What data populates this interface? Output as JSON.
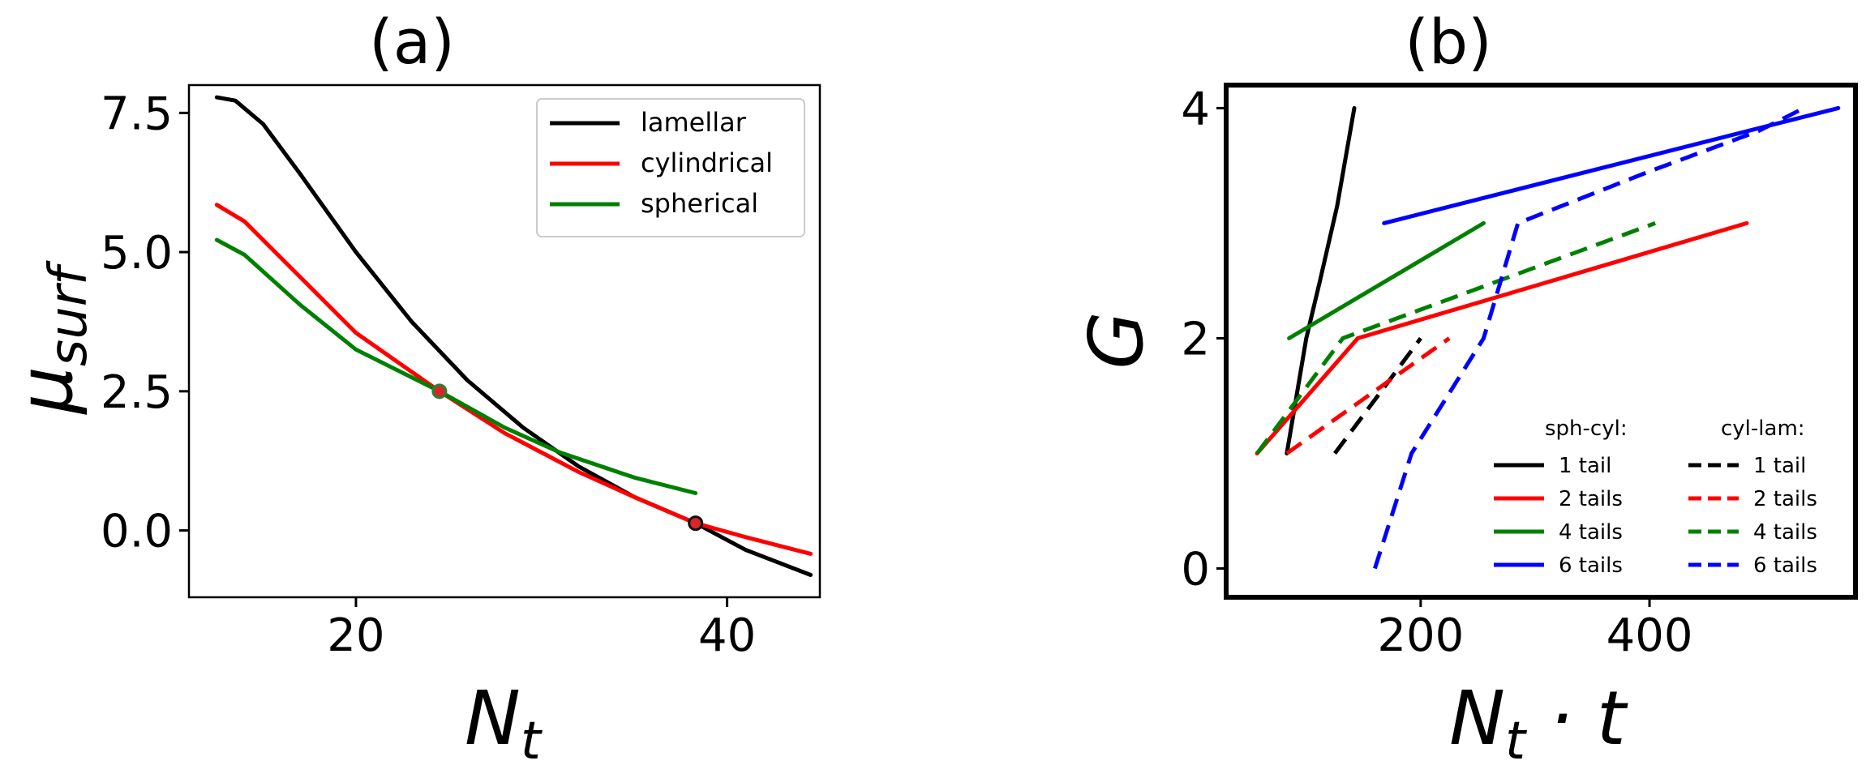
{
  "chart_data": [
    {
      "panel_label": "(a)",
      "type": "line",
      "xlabel_base": "N",
      "xlabel_sub": "t",
      "ylabel_base": "μ",
      "ylabel_sub": "surf",
      "xlim": [
        11.0,
        45.0
      ],
      "ylim": [
        -1.2,
        8.0
      ],
      "xticks": [
        20,
        40
      ],
      "yticks": [
        0.0,
        2.5,
        5.0,
        7.5
      ],
      "xtick_labels": [
        "20",
        "40"
      ],
      "ytick_labels": [
        "0.0",
        "2.5",
        "5.0",
        "7.5"
      ],
      "grid": false,
      "legend_position": "upper-right",
      "series": [
        {
          "name": "lamellar",
          "color": "#000000",
          "style": "solid",
          "x": [
            12.5,
            13.5,
            15,
            17,
            20,
            23,
            26,
            29,
            32,
            35,
            38.3,
            41,
            44.5
          ],
          "y": [
            7.78,
            7.72,
            7.3,
            6.4,
            5.0,
            3.75,
            2.7,
            1.85,
            1.15,
            0.6,
            0.13,
            -0.35,
            -0.8
          ]
        },
        {
          "name": "cylindrical",
          "color": "#ff0000",
          "style": "solid",
          "x": [
            12.5,
            14,
            17,
            20,
            24.5,
            28,
            32,
            35,
            38.3,
            41,
            44.5
          ],
          "y": [
            5.85,
            5.55,
            4.55,
            3.55,
            2.5,
            1.75,
            1.05,
            0.6,
            0.13,
            -0.12,
            -0.42
          ]
        },
        {
          "name": "spherical",
          "color": "#008000",
          "style": "solid",
          "x": [
            12.5,
            14,
            17,
            20,
            24.5,
            28,
            31,
            35,
            38.3
          ],
          "y": [
            5.22,
            4.95,
            4.05,
            3.25,
            2.5,
            1.85,
            1.4,
            0.95,
            0.67
          ]
        }
      ],
      "markers": [
        {
          "x": 24.5,
          "y": 2.5,
          "fill": "#d62728",
          "stroke": "#2e7d32"
        },
        {
          "x": 38.3,
          "y": 0.13,
          "fill": "#d62728",
          "stroke": "#111111"
        }
      ]
    },
    {
      "panel_label": "(b)",
      "type": "line",
      "xlabel_base": "N",
      "xlabel_sub": "t",
      "xlabel_rest": " · t",
      "ylabel": "G",
      "xlim": [
        30,
        580
      ],
      "ylim": [
        -0.25,
        4.2
      ],
      "xticks": [
        200,
        400
      ],
      "yticks": [
        0,
        2,
        4
      ],
      "xtick_labels": [
        "200",
        "400"
      ],
      "ytick_labels": [
        "0",
        "2",
        "4"
      ],
      "grid": false,
      "legend_position": "lower-right",
      "legend_titles": [
        "sph-cyl:",
        "cyl-lam:"
      ],
      "series": [
        {
          "name": "1 tail",
          "group": "sph-cyl",
          "color": "#000000",
          "style": "solid",
          "x": [
            83,
            100,
            112,
            127,
            142
          ],
          "y": [
            1,
            2,
            2.5,
            3.15,
            4
          ]
        },
        {
          "name": "2 tails",
          "group": "sph-cyl",
          "color": "#ff0000",
          "style": "solid",
          "x": [
            57,
            145,
            485
          ],
          "y": [
            1,
            2,
            3
          ]
        },
        {
          "name": "4 tails",
          "group": "sph-cyl",
          "color": "#008000",
          "style": "solid",
          "x": [
            85,
            255
          ],
          "y": [
            2,
            3
          ]
        },
        {
          "name": "6 tails",
          "group": "sph-cyl",
          "color": "#0000ff",
          "style": "solid",
          "x": [
            168,
            565
          ],
          "y": [
            3,
            4
          ]
        },
        {
          "name": "1 tail",
          "group": "cyl-lam",
          "color": "#000000",
          "style": "dashed",
          "x": [
            125,
            200
          ],
          "y": [
            1,
            2
          ]
        },
        {
          "name": "2 tails",
          "group": "cyl-lam",
          "color": "#ff0000",
          "style": "dashed",
          "x": [
            83,
            225
          ],
          "y": [
            1,
            2
          ]
        },
        {
          "name": "4 tails",
          "group": "cyl-lam",
          "color": "#008000",
          "style": "dashed",
          "x": [
            57,
            132,
            405
          ],
          "y": [
            1,
            2,
            3
          ]
        },
        {
          "name": "6 tails",
          "group": "cyl-lam",
          "color": "#0000ff",
          "style": "dashed",
          "x": [
            160,
            192,
            255,
            285,
            400,
            495,
            535
          ],
          "y": [
            0,
            1,
            2,
            3,
            3.45,
            3.8,
            4
          ]
        }
      ]
    }
  ]
}
